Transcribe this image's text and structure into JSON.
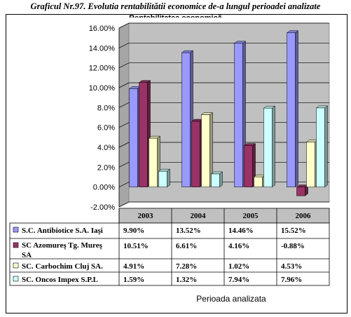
{
  "chart_data": {
    "type": "bar",
    "title": "Graficul Nr.97.  Evolutia rentabilitătii economice de-a lungul perioadei analizate",
    "subtitle": "Rentabilitatea economică",
    "xlabel": "Perioada analizata",
    "ylabel": "",
    "categories": [
      "2003",
      "2004",
      "2005",
      "2006"
    ],
    "ylim": [
      -0.02,
      0.16
    ],
    "yticks": [
      "-2.00%",
      "0.00%",
      "2.0%",
      "4.0%",
      "6.0%",
      "8.0%",
      "10.00%",
      "12.00%",
      "14.00%",
      "16.00%"
    ],
    "ytick_values": [
      -0.02,
      0,
      0.02,
      0.04,
      0.06,
      0.08,
      0.1,
      0.12,
      0.14,
      0.16
    ],
    "legend_placement": "table-left",
    "series": [
      {
        "name": "S.C. Antibiotice S.A. Iaşi",
        "values": [
          0.099,
          0.1352,
          0.1446,
          0.1552
        ],
        "labels": [
          "9.90%",
          "13.52%",
          "14.46%",
          "15.52%"
        ],
        "color": "#9999ff"
      },
      {
        "name": "SC Azomureş Tg. Mureş SA",
        "values": [
          0.1051,
          0.0661,
          0.0416,
          -0.0088
        ],
        "labels": [
          "10.51%",
          "6.61%",
          "4.16%",
          "-0.88%"
        ],
        "color": "#993366"
      },
      {
        "name": "SC. Carbochim Cluj SA.",
        "values": [
          0.0491,
          0.0728,
          0.0102,
          0.0453
        ],
        "labels": [
          "4.91%",
          "7.28%",
          "1.02%",
          "4.53%"
        ],
        "color": "#ffffcc"
      },
      {
        "name": "SC. Oncos Impex S.P.L",
        "values": [
          0.0159,
          0.0132,
          0.0794,
          0.0796
        ],
        "labels": [
          "1.59%",
          "1.32%",
          "7.94%",
          "7.96%"
        ],
        "color": "#ccffff"
      }
    ],
    "grid": true,
    "plot_background": "#c0c0c0"
  }
}
